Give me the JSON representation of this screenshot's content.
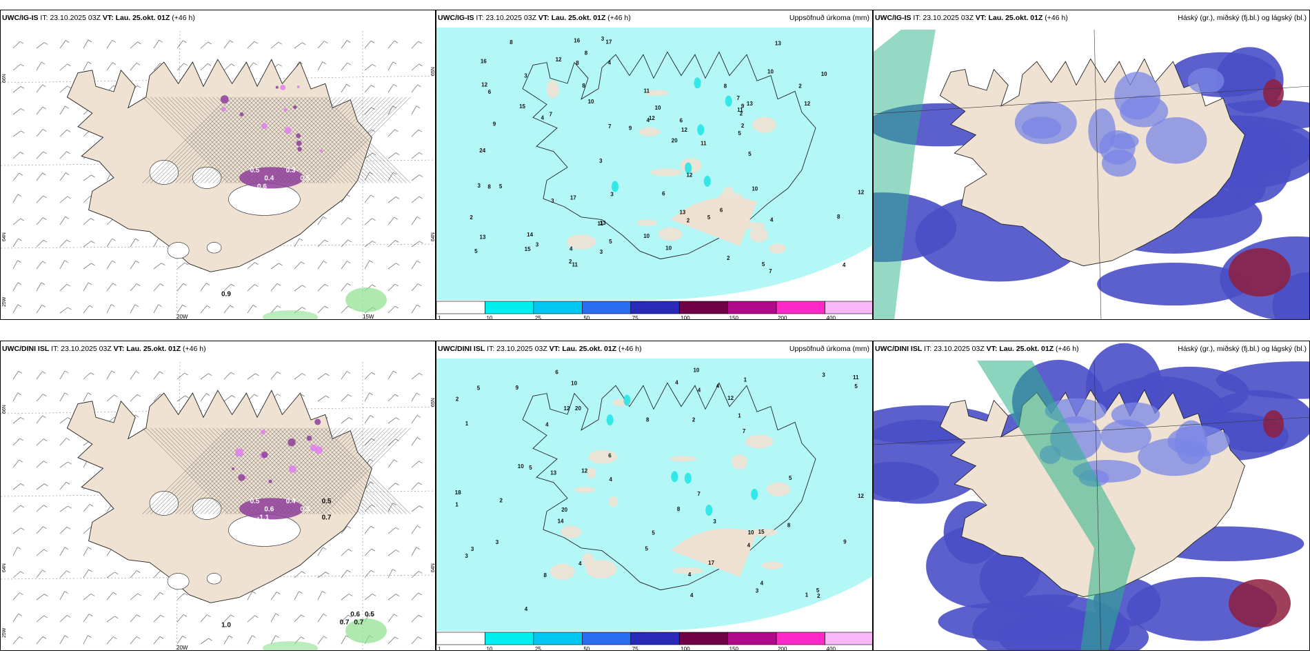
{
  "panels": [
    {
      "model": "UWC/IG-IS",
      "it_label": "IT:",
      "it_value": "23.10.2025 03Z",
      "vt_label": "VT:",
      "vt_value": "Lau. 25.okt. 01Z",
      "lead": "(+46 h)",
      "right_title": "",
      "kind": "precip-type",
      "values": [
        "0.5",
        "0.4",
        "0.6",
        "0.3",
        "0.5",
        "0.9"
      ],
      "lon_labels": [
        "20W",
        "15W"
      ],
      "lat_labels": [
        "66N",
        "64N",
        "25W",
        "65N",
        "64N"
      ]
    },
    {
      "model": "UWC/IG-IS",
      "it_label": "IT:",
      "it_value": "23.10.2025 03Z",
      "vt_label": "VT:",
      "vt_value": "Lau. 25.okt. 01Z",
      "lead": "(+46 h)",
      "right_title": "Uppsöfnuð úrkoma (mm)",
      "kind": "accum",
      "values": [
        "9",
        "10",
        "4",
        "13",
        "8",
        "3",
        "5",
        "7",
        "10",
        "10",
        "12",
        "4",
        "6",
        "12",
        "16",
        "5",
        "14",
        "3",
        "12",
        "9",
        "11",
        "10",
        "12",
        "7",
        "9",
        "10",
        "7",
        "5",
        "13",
        "15",
        "11",
        "6",
        "7",
        "12",
        "20",
        "17",
        "4",
        "3",
        "8",
        "10",
        "11",
        "11",
        "11",
        "8",
        "13",
        "17",
        "12",
        "24",
        "15",
        "16",
        "12",
        "5",
        "13",
        "13",
        "4",
        "3",
        "3",
        "4",
        "2",
        "3",
        "2",
        "8",
        "10",
        "8",
        "5",
        "5",
        "2",
        "2",
        "2",
        "3",
        "3",
        "6",
        "8",
        "8",
        "4",
        "2",
        "2",
        "5",
        "6"
      ],
      "colorbar": [
        "1",
        "10",
        "25",
        "50",
        "75",
        "100",
        "150",
        "200",
        "400"
      ]
    },
    {
      "model": "UWC/IG-IS",
      "it_label": "IT:",
      "it_value": "23.10.2025 03Z",
      "vt_label": "VT:",
      "vt_value": "Lau. 25.okt. 01Z",
      "lead": "(+46 h)",
      "right_title": "Háský (gr.), miðský (fj.bl.) og lágský (bl.)",
      "kind": "clouds"
    },
    {
      "model": "UWC/DINI ISL",
      "it_label": "IT:",
      "it_value": "23.10.2025 03Z",
      "vt_label": "VT:",
      "vt_value": "Lau. 25.okt. 01Z",
      "lead": "(+46 h)",
      "right_title": "",
      "kind": "precip-type",
      "values": [
        "0.5",
        "0.6",
        "-1.1",
        "0.4",
        "0.3",
        "1.0",
        "0.5",
        "0.7",
        "0.6",
        "0.5",
        "0.7",
        "0.7"
      ],
      "lon_labels": [
        "20W"
      ],
      "lat_labels": [
        "66N",
        "64N",
        "25W",
        "65N",
        "64N"
      ]
    },
    {
      "model": "UWC/DINI ISL",
      "it_label": "IT:",
      "it_value": "23.10.2025 03Z",
      "vt_label": "VT:",
      "vt_value": "Lau. 25.okt. 01Z",
      "lead": "(+46 h)",
      "right_title": "Uppsöfnuð úrkoma (mm)",
      "kind": "accum",
      "values": [
        "2",
        "7",
        "20",
        "8",
        "1",
        "4",
        "3",
        "12",
        "14",
        "5",
        "8",
        "10",
        "15",
        "7",
        "9",
        "3",
        "6",
        "10",
        "12",
        "9",
        "5",
        "5",
        "6",
        "4",
        "5",
        "18",
        "13",
        "12",
        "4",
        "12",
        "4",
        "5",
        "10",
        "11",
        "8",
        "3",
        "17",
        "20",
        "5",
        "8",
        "4",
        "3",
        "2",
        "1",
        "5",
        "4",
        "1",
        "4",
        "2",
        "1",
        "3",
        "4",
        "4",
        "10",
        "4",
        "3",
        "4",
        "2",
        "1"
      ],
      "colorbar": [
        "1",
        "10",
        "25",
        "50",
        "75",
        "100",
        "150",
        "200",
        "400"
      ]
    },
    {
      "model": "UWC/DINI ISL",
      "it_label": "IT:",
      "it_value": "23.10.2025 03Z",
      "vt_label": "VT:",
      "vt_value": "Lau. 25.okt. 01Z",
      "lead": "(+46 h)",
      "right_title": "Háský (gr.), miðský (fj.bl.) og lágský (bl.)",
      "kind": "clouds"
    }
  ],
  "colors": {
    "land": "#efe2d3",
    "coast": "#222222",
    "accum_low": "#b3f7f7",
    "accum_cyan": "#12e3e3",
    "cloud_low": "#4a4fc6",
    "cloud_mid": "#7a86e6",
    "cloud_high": "#2bb38a",
    "cloud_dark": "#8e1e3e",
    "snow_purple": "#8f3f9a",
    "snow_pink": "#e07ef0",
    "green_precip": "#8fe08f",
    "colorbar": [
      "#ffffff",
      "#00f0f0",
      "#00c8f0",
      "#2a6cf0",
      "#2a2ab8",
      "#6e0046",
      "#b00a8a",
      "#ff28c8",
      "#f8b8f8"
    ]
  }
}
